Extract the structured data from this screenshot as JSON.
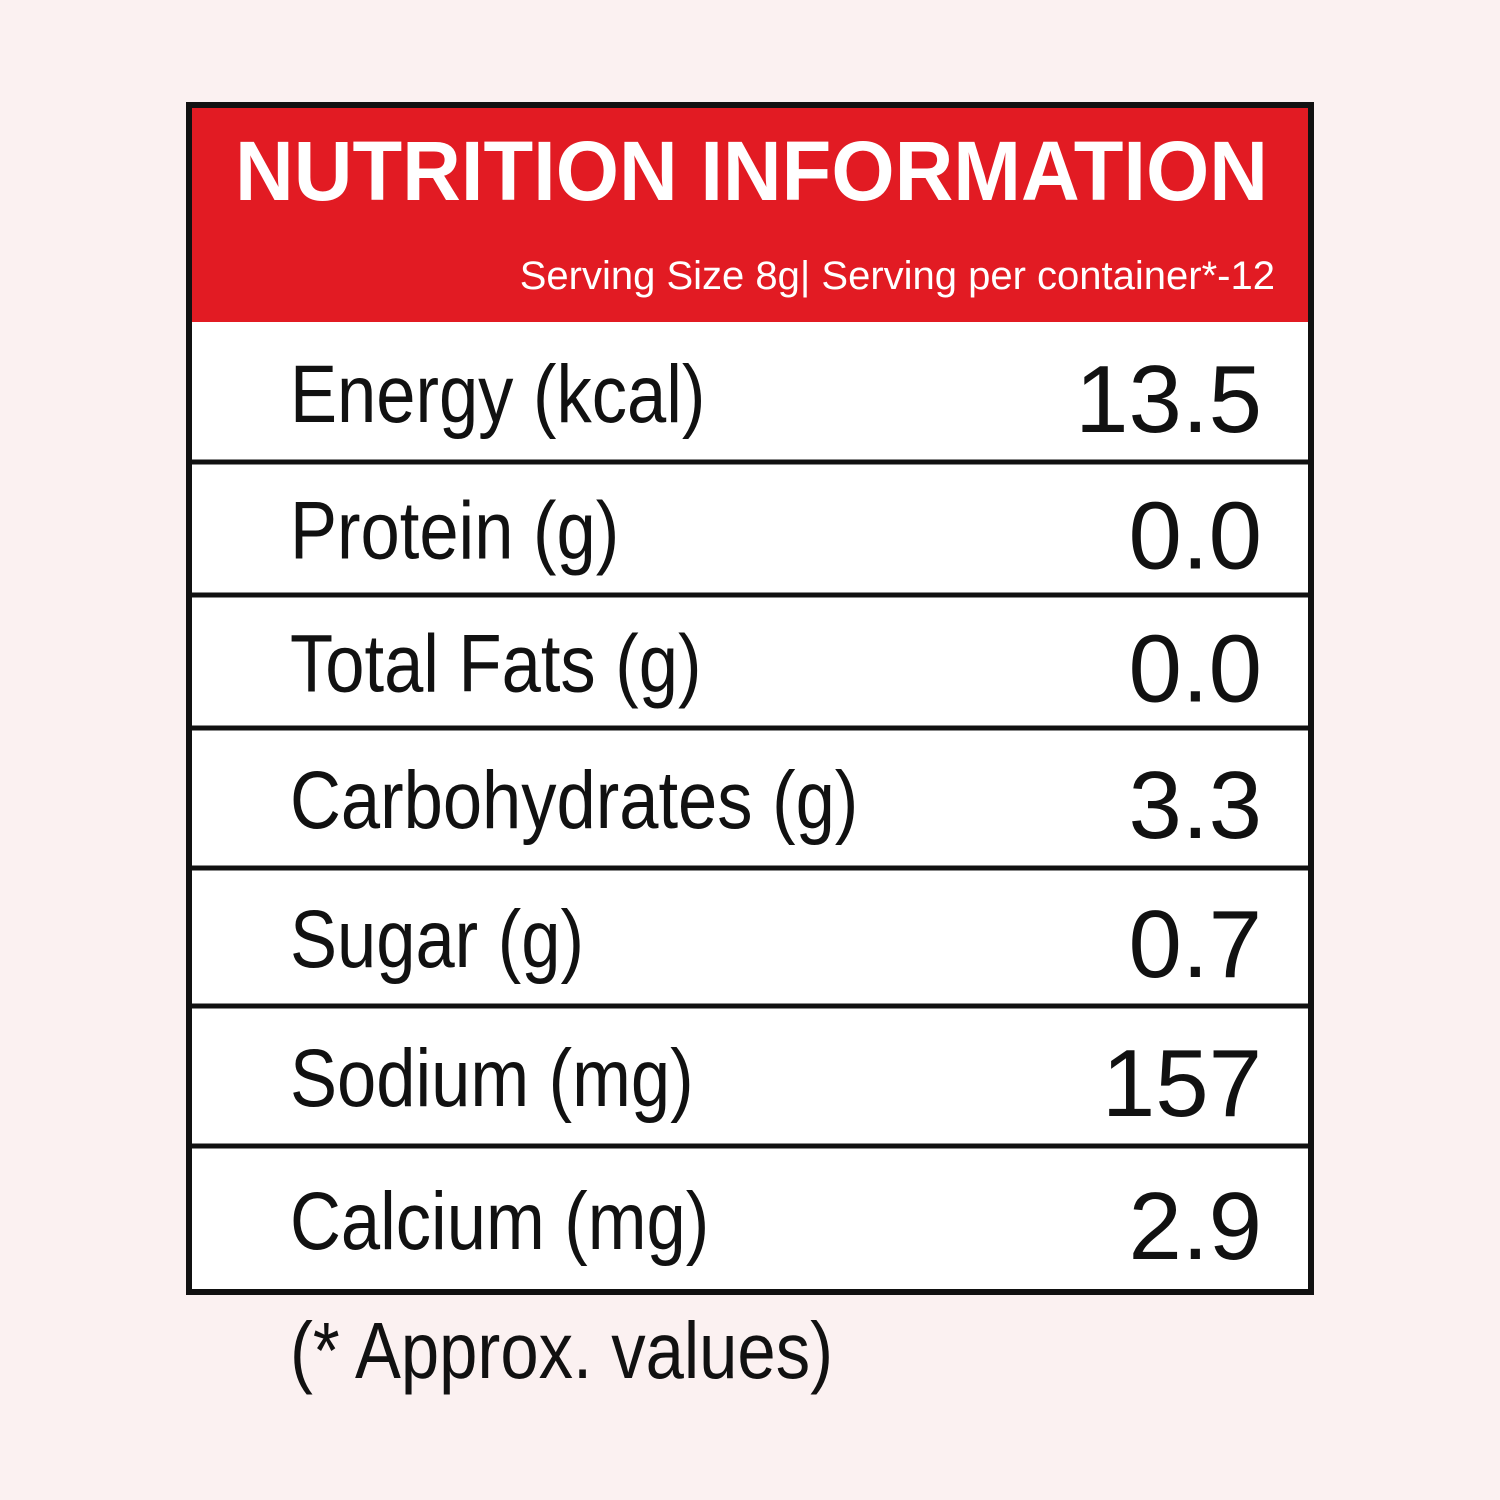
{
  "header": {
    "title": "NUTRITION INFORMATION",
    "subtitle": "Serving Size 8g| Serving per container*-12"
  },
  "table": {
    "rows": [
      [
        "Energy (kcal)",
        "13.5"
      ],
      [
        "Protein (g)",
        "0.0"
      ],
      [
        "Total Fats (g)",
        "0.0"
      ],
      [
        "Carbohydrates (g)",
        "3.3"
      ],
      [
        "Sugar (g)",
        "0.7"
      ],
      [
        "Sodium (mg)",
        "157"
      ],
      [
        "Calcium (mg)",
        "2.9"
      ]
    ]
  },
  "footnote": "(* Approx. values)"
}
